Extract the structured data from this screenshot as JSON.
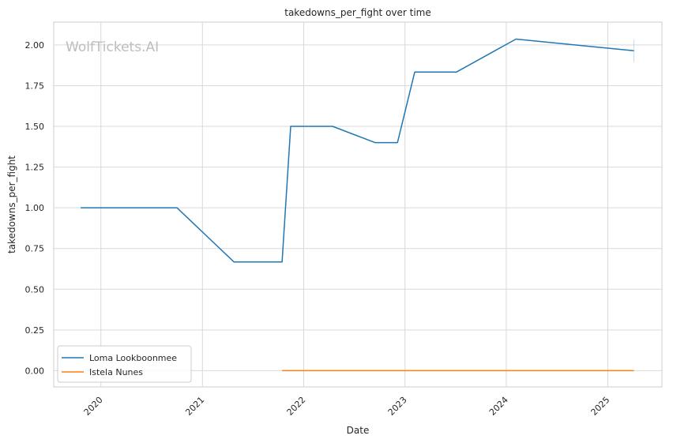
{
  "chart_data": {
    "type": "line",
    "title": "takedowns_per_fight over time",
    "xlabel": "Date",
    "ylabel": "takedowns_per_fight",
    "watermark": "WolfTickets.AI",
    "x_ticks": [
      "2020",
      "2021",
      "2022",
      "2023",
      "2024",
      "2025"
    ],
    "y_ticks": [
      "0.00",
      "0.25",
      "0.50",
      "0.75",
      "1.00",
      "1.25",
      "1.50",
      "1.75",
      "2.00"
    ],
    "ylim": [
      -0.1,
      2.14
    ],
    "xlim": [
      "2019-07-15",
      "2025-07-15"
    ],
    "grid": true,
    "legend_position": "lower-left",
    "series": [
      {
        "name": "Loma Lookboonmee",
        "color": "#1f77b4",
        "points": [
          {
            "x": "2019-10-20",
            "y": 1.0
          },
          {
            "x": "2020-10-01",
            "y": 1.0
          },
          {
            "x": "2021-04-25",
            "y": 0.667
          },
          {
            "x": "2021-10-15",
            "y": 0.667
          },
          {
            "x": "2021-11-15",
            "y": 1.5
          },
          {
            "x": "2022-04-15",
            "y": 1.5
          },
          {
            "x": "2022-09-15",
            "y": 1.4
          },
          {
            "x": "2022-12-05",
            "y": 1.4
          },
          {
            "x": "2023-02-05",
            "y": 1.833
          },
          {
            "x": "2023-07-05",
            "y": 1.833
          },
          {
            "x": "2024-02-05",
            "y": 2.036
          },
          {
            "x": "2025-04-05",
            "y": 1.964
          }
        ]
      },
      {
        "name": "Istela Nunes",
        "color": "#ff7f0e",
        "points": [
          {
            "x": "2021-10-15",
            "y": 0.0
          },
          {
            "x": "2025-04-05",
            "y": 0.0
          }
        ]
      }
    ]
  }
}
